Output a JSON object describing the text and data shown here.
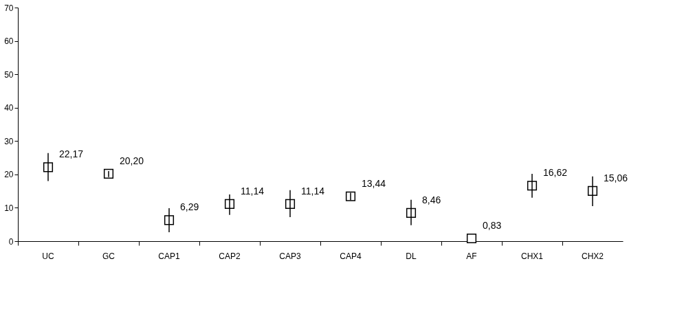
{
  "chart_data": {
    "type": "scatter",
    "categories": [
      "UC",
      "GC",
      "CAP1",
      "CAP2",
      "CAP3",
      "CAP4",
      "DL",
      "AF",
      "CHX1",
      "CHX2"
    ],
    "values": [
      22.17,
      20.2,
      6.29,
      11.14,
      11.14,
      13.44,
      8.46,
      0.83,
      16.62,
      15.06
    ],
    "value_labels": [
      "22,17",
      "20,20",
      "6,29",
      "11,14",
      "11,14",
      "13,44",
      "8,46",
      "0,83",
      "16,62",
      "15,06"
    ],
    "errors": [
      [
        18.0,
        26.4
      ],
      [
        19.2,
        21.0
      ],
      [
        2.7,
        9.9
      ],
      [
        7.9,
        14.0
      ],
      [
        7.2,
        15.3
      ],
      [
        12.3,
        14.5
      ],
      [
        4.8,
        12.4
      ],
      null,
      [
        13.0,
        20.2
      ],
      [
        10.5,
        19.4
      ]
    ],
    "color": "#000000",
    "marker": "square",
    "ylim": [
      0,
      70
    ],
    "yticks": [
      0,
      10,
      20,
      30,
      40,
      50,
      60,
      70
    ],
    "grid": false,
    "legend": false
  }
}
